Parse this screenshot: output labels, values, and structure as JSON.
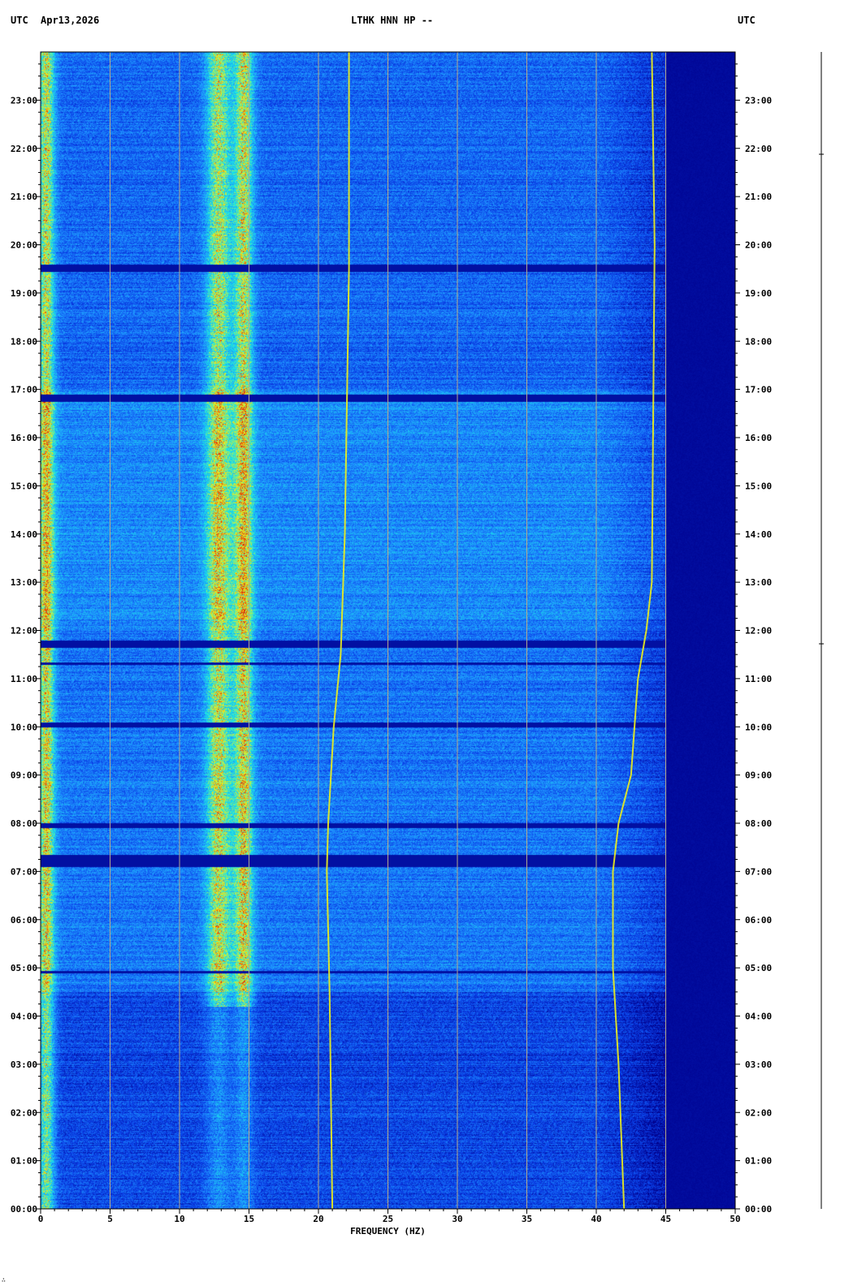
{
  "header": {
    "left_label": "UTC",
    "date": "Apr13,2026",
    "station": "LTHK HNN HP --",
    "right_label": "UTC"
  },
  "corner_mark": "∴",
  "colors": {
    "background_deep": "#00008c",
    "background": "#0a3ee6",
    "mid": "#1e90ff",
    "cyan": "#19e6e6",
    "yellow": "#f0f019",
    "red": "#dc1e0a",
    "gridline": "#b4a88c",
    "axis": "#000000"
  },
  "chart_data": {
    "type": "heatmap",
    "title": "LTHK HNN HP --",
    "xlabel": "FREQUENCY (HZ)",
    "ylabel": "UTC",
    "xlim": [
      0,
      50
    ],
    "ylim_hours": [
      0,
      24
    ],
    "x_ticks": [
      0,
      5,
      10,
      15,
      20,
      25,
      30,
      35,
      40,
      45,
      50
    ],
    "x_tick_labels": [
      "0",
      "5",
      "10",
      "15",
      "20",
      "25",
      "30",
      "35",
      "40",
      "45",
      "50"
    ],
    "y_ticks_hours": [
      0,
      1,
      2,
      3,
      4,
      5,
      6,
      7,
      8,
      9,
      10,
      11,
      12,
      13,
      14,
      15,
      16,
      17,
      18,
      19,
      20,
      21,
      22,
      23
    ],
    "y_tick_labels": [
      "00:00",
      "01:00",
      "02:00",
      "03:00",
      "04:00",
      "05:00",
      "06:00",
      "07:00",
      "08:00",
      "09:00",
      "10:00",
      "11:00",
      "12:00",
      "13:00",
      "14:00",
      "15:00",
      "16:00",
      "17:00",
      "18:00",
      "19:00",
      "20:00",
      "21:00",
      "22:00",
      "23:00"
    ],
    "vertical_gridlines": [
      5,
      10,
      15,
      20,
      25,
      30,
      35,
      40,
      45
    ],
    "grid": true,
    "colormap": [
      "#00008c",
      "#0a3ee6",
      "#1e90ff",
      "#19e6e6",
      "#f0f019",
      "#dc1e0a"
    ],
    "energy_bands_hz": [
      {
        "center": 0.4,
        "width": 0.6,
        "level": 0.85
      },
      {
        "center": 12.8,
        "width": 0.9,
        "level": 0.8
      },
      {
        "center": 14.6,
        "width": 0.7,
        "level": 0.85
      }
    ],
    "tone_lines": [
      {
        "name": "line-21hz",
        "points": [
          [
            0,
            21.0
          ],
          [
            4.5,
            20.8
          ],
          [
            7.0,
            20.6
          ],
          [
            8.0,
            20.7
          ],
          [
            10.0,
            21.1
          ],
          [
            11.5,
            21.6
          ],
          [
            14.0,
            21.9
          ],
          [
            19.5,
            22.2
          ],
          [
            24,
            22.2
          ]
        ]
      },
      {
        "name": "line-42hz",
        "points": [
          [
            0,
            42.0
          ],
          [
            1.5,
            41.8
          ],
          [
            3.0,
            41.6
          ],
          [
            5.0,
            41.2
          ],
          [
            7.0,
            41.2
          ],
          [
            8.0,
            41.6
          ],
          [
            9.0,
            42.5
          ],
          [
            11.0,
            43.0
          ],
          [
            12.0,
            43.6
          ],
          [
            13.0,
            44.0
          ],
          [
            20.0,
            44.2
          ],
          [
            24,
            44.0
          ]
        ]
      }
    ],
    "quiet_gaps_hours": [
      [
        4.9,
        4.95
      ],
      [
        7.1,
        7.35
      ],
      [
        7.9,
        8.0
      ],
      [
        10.0,
        10.1
      ],
      [
        11.3,
        11.35
      ],
      [
        11.65,
        11.8
      ],
      [
        16.75,
        16.9
      ],
      [
        19.45,
        19.6
      ]
    ]
  }
}
